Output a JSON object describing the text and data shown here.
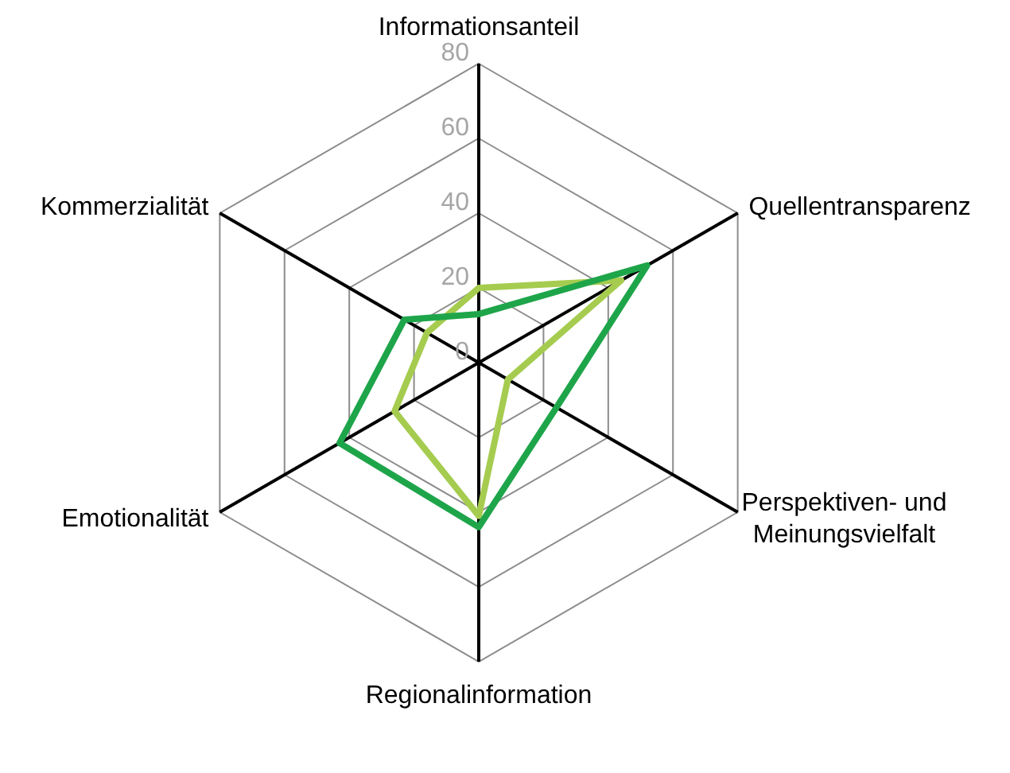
{
  "chart_data": {
    "type": "radar",
    "categories": [
      "Informationsanteil",
      "Quellentransparenz",
      "Perspektiven- und Meinungsvielfalt",
      "Regionalinformation",
      "Emotionalität",
      "Kommerzialität"
    ],
    "series": [
      {
        "color": "#a5cc4f",
        "values": [
          20,
          44,
          9,
          41,
          26,
          16
        ]
      },
      {
        "color": "#1ea54a",
        "values": [
          13,
          52,
          24,
          44,
          43,
          23
        ]
      }
    ],
    "ylim": [
      0,
      80
    ],
    "yticks": [
      0,
      20,
      40,
      60,
      80
    ]
  }
}
